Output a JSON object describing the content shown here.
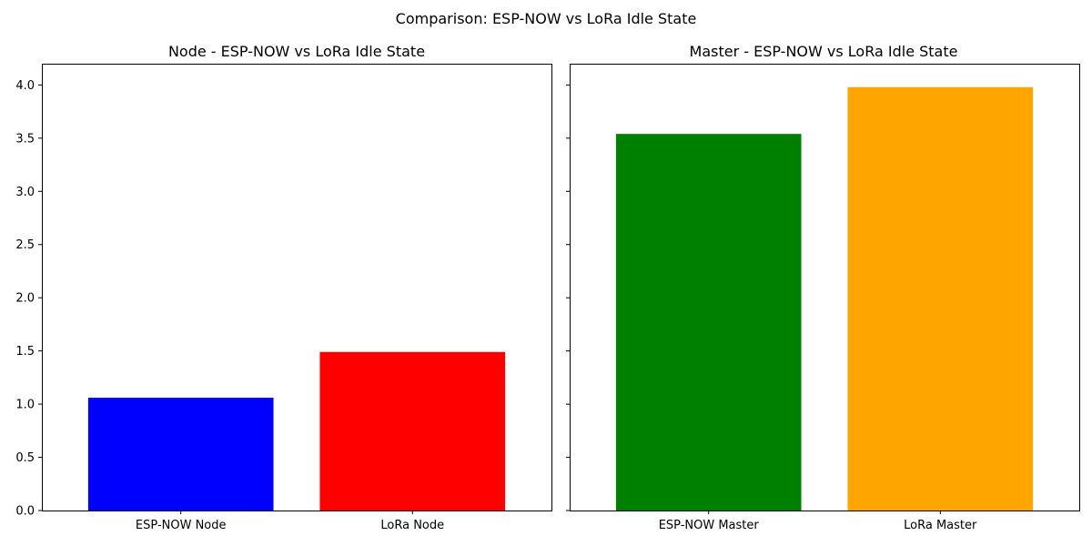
{
  "figure": {
    "suptitle": "Comparison: ESP-NOW vs LoRa Idle State"
  },
  "chart_data": [
    {
      "type": "bar",
      "title": "Node - ESP-NOW vs LoRa Idle State",
      "categories": [
        "ESP-NOW Node",
        "LoRa Node"
      ],
      "values": [
        1.06,
        1.49
      ],
      "colors": [
        "#0000ff",
        "#ff0000"
      ],
      "ylim": [
        0,
        4.2
      ],
      "yticks": [
        0.0,
        0.5,
        1.0,
        1.5,
        2.0,
        2.5,
        3.0,
        3.5,
        4.0
      ],
      "ytick_labels": [
        "0.0",
        "0.5",
        "1.0",
        "1.5",
        "2.0",
        "2.5",
        "3.0",
        "3.5",
        "4.0"
      ],
      "xlabel": "",
      "ylabel": "",
      "grid": false,
      "sharey": true
    },
    {
      "type": "bar",
      "title": "Master - ESP-NOW vs LoRa Idle State",
      "categories": [
        "ESP-NOW Master",
        "LoRa Master"
      ],
      "values": [
        3.54,
        3.98
      ],
      "colors": [
        "#008000",
        "#ffa500"
      ],
      "ylim": [
        0,
        4.2
      ],
      "yticks": [
        0.0,
        0.5,
        1.0,
        1.5,
        2.0,
        2.5,
        3.0,
        3.5,
        4.0
      ],
      "ytick_labels": [],
      "xlabel": "",
      "ylabel": "",
      "grid": false,
      "sharey": true
    }
  ]
}
